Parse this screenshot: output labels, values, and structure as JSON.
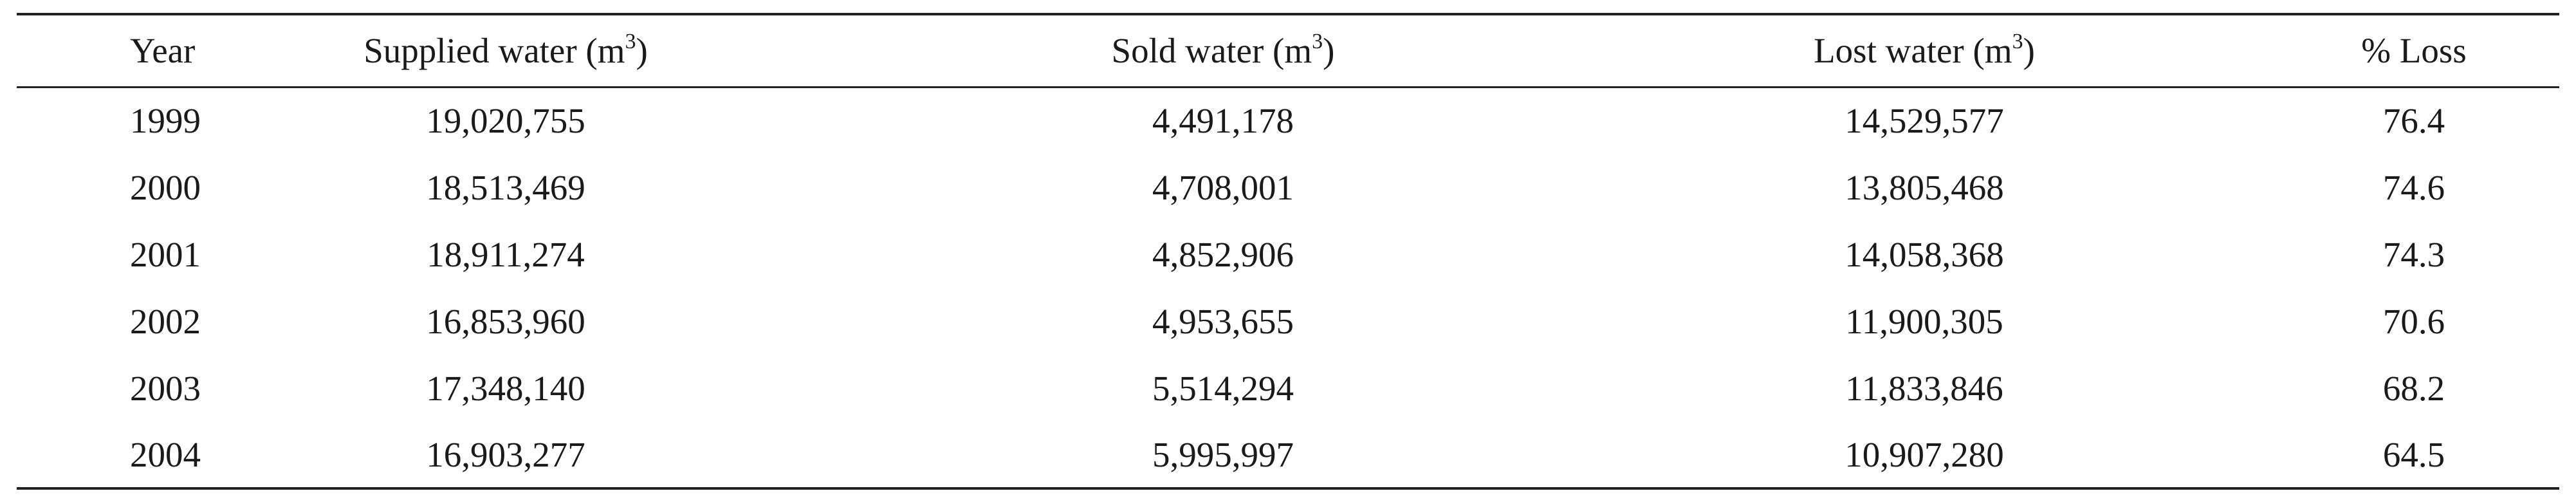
{
  "table": {
    "headers": [
      {
        "text": "Year",
        "sup": ""
      },
      {
        "text": "Supplied water (m",
        "sup": "3",
        "close": ")"
      },
      {
        "text": "Sold water (m",
        "sup": "3",
        "close": ")"
      },
      {
        "text": "Lost water (m",
        "sup": "3",
        "close": ")"
      },
      {
        "text": "% Loss",
        "sup": ""
      }
    ],
    "rows": [
      {
        "year": "1999",
        "supplied": "19,020,755",
        "sold": "4,491,178",
        "lost": "14,529,577",
        "loss_pct": "76.4"
      },
      {
        "year": "2000",
        "supplied": "18,513,469",
        "sold": "4,708,001",
        "lost": "13,805,468",
        "loss_pct": "74.6"
      },
      {
        "year": "2001",
        "supplied": "18,911,274",
        "sold": "4,852,906",
        "lost": "14,058,368",
        "loss_pct": "74.3"
      },
      {
        "year": "2002",
        "supplied": "16,853,960",
        "sold": "4,953,655",
        "lost": "11,900,305",
        "loss_pct": "70.6"
      },
      {
        "year": "2003",
        "supplied": "17,348,140",
        "sold": "5,514,294",
        "lost": "11,833,846",
        "loss_pct": "68.2"
      },
      {
        "year": "2004",
        "supplied": "16,903,277",
        "sold": "5,995,997",
        "lost": "10,907,280",
        "loss_pct": "64.5"
      }
    ]
  }
}
